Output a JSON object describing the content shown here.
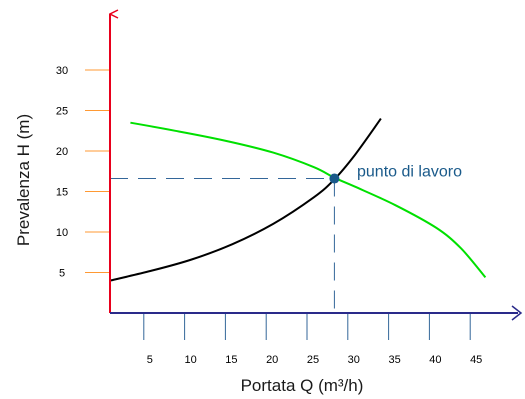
{
  "chart_data": {
    "type": "line",
    "title": "",
    "xlabel": "Portata Q (m³/h)",
    "ylabel": "Prevalenza H (m)",
    "xlim": [
      0,
      50
    ],
    "ylim": [
      0,
      35
    ],
    "x_ticks": [
      5,
      10,
      15,
      20,
      25,
      30,
      35,
      40,
      45
    ],
    "y_ticks": [
      5,
      10,
      15,
      20,
      25,
      30
    ],
    "grid": false,
    "series": [
      {
        "name": "",
        "color": "#00e000",
        "points": [
          [
            2.5,
            23.5
          ],
          [
            8,
            22.5
          ],
          [
            14,
            21.3
          ],
          [
            20,
            19.8
          ],
          [
            25,
            18
          ],
          [
            27.5,
            16.7
          ],
          [
            30,
            15.6
          ],
          [
            35,
            13.3
          ],
          [
            40,
            10.5
          ],
          [
            43,
            8.0
          ],
          [
            46,
            4.4
          ]
        ]
      },
      {
        "name": "",
        "color": "#000000",
        "points": [
          [
            0,
            4.0
          ],
          [
            5,
            5.2
          ],
          [
            10,
            6.6
          ],
          [
            15,
            8.5
          ],
          [
            20,
            11.0
          ],
          [
            25,
            14.3
          ],
          [
            27.5,
            16.5
          ],
          [
            30,
            19.5
          ],
          [
            33.2,
            24.0
          ]
        ]
      }
    ],
    "operating_point": {
      "label": "punto di lavoro",
      "x": 27.5,
      "y": 16.6,
      "label_color": "#1a5a8a"
    },
    "colors": {
      "y_axis": "#e8001c",
      "x_axis": "#2a2a8a",
      "y_ticks": "#ff9933",
      "x_ticks": "#336699",
      "guide_lines": "#336699",
      "point": "#1a5a8a"
    }
  }
}
